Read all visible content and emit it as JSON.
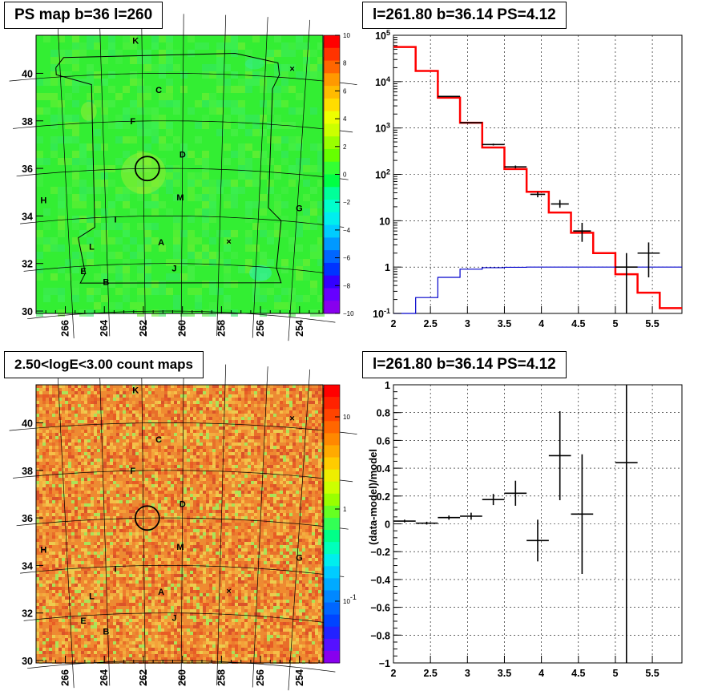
{
  "panels": {
    "ps_map": {
      "title": "PS map b=36 l=260"
    },
    "spectrum": {
      "title": "l=261.80 b=36.14 PS=4.12"
    },
    "count_map": {
      "title": "2.50<logE<3.00 count maps"
    },
    "residual": {
      "title": "l=261.80 b=36.14 PS=4.12",
      "ylabel": "(data-model)/model"
    }
  },
  "chart_data": [
    {
      "type": "heatmap",
      "title": "PS map b=36 l=260",
      "x_ticks": [
        "266",
        "264",
        "262",
        "260",
        "258",
        "256",
        "254"
      ],
      "y_ticks": [
        "30",
        "32",
        "34",
        "36",
        "38",
        "40"
      ],
      "xlim": [
        267.5,
        252.8
      ],
      "ylim": [
        29.9,
        41.6
      ],
      "colorbar_ticks": [
        "10",
        "8",
        "6",
        "4",
        "2",
        "0",
        "−2",
        "−4",
        "−6",
        "−8",
        "−10"
      ],
      "colorbar_range": [
        -10,
        10
      ],
      "labels": [
        {
          "text": "K",
          "l": 262.3,
          "b": 41.4
        },
        {
          "text": "C",
          "l": 261.2,
          "b": 39.3
        },
        {
          "text": "F",
          "l": 262.5,
          "b": 38.0
        },
        {
          "text": "D",
          "l": 260.0,
          "b": 36.6
        },
        {
          "text": "H",
          "l": 267.2,
          "b": 34.9
        },
        {
          "text": "M",
          "l": 260.1,
          "b": 34.8
        },
        {
          "text": "G",
          "l": 253.9,
          "b": 34.6
        },
        {
          "text": "I",
          "l": 263.5,
          "b": 33.9
        },
        {
          "text": "L",
          "l": 264.8,
          "b": 32.8
        },
        {
          "text": "A",
          "l": 261.1,
          "b": 32.9
        },
        {
          "text": "E",
          "l": 265.3,
          "b": 31.8
        },
        {
          "text": "J",
          "l": 260.4,
          "b": 31.8
        },
        {
          "text": "B",
          "l": 264.1,
          "b": 31.3
        },
        {
          "text": "×",
          "l": 257.5,
          "b": 33.0
        },
        {
          "text": "×",
          "l": 254.7,
          "b": 40.4
        }
      ],
      "circle": {
        "l": 261.8,
        "b": 36.0
      }
    },
    {
      "type": "line",
      "title": "l=261.80 b=36.14 PS=4.12",
      "x_ticks": [
        "2",
        "2.5",
        "3",
        "3.5",
        "4",
        "4.5",
        "5",
        "5.5"
      ],
      "y_ticks": [
        "10^-1",
        "1",
        "10",
        "10^2",
        "10^3",
        "10^4",
        "10^5"
      ],
      "xlim": [
        2,
        5.9
      ],
      "ylim": [
        0.1,
        100000
      ],
      "yscale": "log",
      "grid": true,
      "bin_edges": [
        2.0,
        2.3,
        2.6,
        2.9,
        3.2,
        3.5,
        3.8,
        4.1,
        4.4,
        4.7,
        5.0,
        5.3,
        5.6,
        5.9
      ],
      "series": [
        {
          "color": "#ff0000",
          "values": [
            56000,
            17000,
            4500,
            1300,
            380,
            130,
            42,
            15,
            5.5,
            2,
            0.7,
            0.28,
            0.13
          ]
        },
        {
          "color": "#0000cc",
          "values": [
            0.08,
            0.22,
            0.6,
            0.9,
            0.97,
            0.99,
            1,
            1,
            1,
            1,
            1,
            1,
            1
          ]
        }
      ],
      "data_points": [
        {
          "x": 2.75,
          "y": 4800,
          "dx": 0.15,
          "ylo": 4700,
          "yhi": 4900
        },
        {
          "x": 3.05,
          "y": 1300,
          "dx": 0.15,
          "ylo": 1270,
          "yhi": 1330
        },
        {
          "x": 3.35,
          "y": 440,
          "dx": 0.15,
          "ylo": 420,
          "yhi": 460
        },
        {
          "x": 3.65,
          "y": 145,
          "dx": 0.15,
          "ylo": 135,
          "yhi": 155
        },
        {
          "x": 3.95,
          "y": 37,
          "dx": 0.1,
          "ylo": 32,
          "yhi": 42
        },
        {
          "x": 4.25,
          "y": 23,
          "dx": 0.12,
          "ylo": 19,
          "yhi": 28
        },
        {
          "x": 4.55,
          "y": 6,
          "dx": 0.12,
          "ylo": 3.5,
          "yhi": 9
        },
        {
          "x": 5.15,
          "y": 1,
          "dx": 0.15,
          "ylo": 0.09,
          "yhi": 2
        },
        {
          "x": 5.45,
          "y": 2,
          "dx": 0.15,
          "ylo": 0.6,
          "yhi": 3.4
        }
      ]
    },
    {
      "type": "heatmap",
      "title": "2.50<logE<3.00 count maps",
      "x_ticks": [
        "266",
        "264",
        "262",
        "260",
        "258",
        "256",
        "254"
      ],
      "y_ticks": [
        "30",
        "32",
        "34",
        "36",
        "38",
        "40"
      ],
      "colorbar_ticks": [
        "10",
        "1",
        "10^-1"
      ],
      "colorbar_scale": "log"
    },
    {
      "type": "scatter",
      "title": "l=261.80 b=36.14 PS=4.12",
      "ylabel": "(data-model)/model",
      "x_ticks": [
        "2",
        "2.5",
        "3",
        "3.5",
        "4",
        "4.5",
        "5",
        "5.5"
      ],
      "y_ticks": [
        "−1",
        "−0.8",
        "−0.6",
        "−0.4",
        "−0.2",
        "0",
        "0.2",
        "0.4",
        "0.6",
        "0.8",
        "1"
      ],
      "xlim": [
        2,
        5.9
      ],
      "ylim": [
        -1,
        1
      ],
      "grid": true,
      "points": [
        {
          "x": 2.15,
          "y": 0.02,
          "dx": 0.15,
          "err": 0.01
        },
        {
          "x": 2.45,
          "y": 0.005,
          "dx": 0.15,
          "err": 0.01
        },
        {
          "x": 2.75,
          "y": 0.045,
          "dx": 0.15,
          "err": 0.015
        },
        {
          "x": 3.05,
          "y": 0.055,
          "dx": 0.15,
          "err": 0.025
        },
        {
          "x": 3.35,
          "y": 0.175,
          "dx": 0.15,
          "err": 0.04
        },
        {
          "x": 3.65,
          "y": 0.22,
          "dx": 0.15,
          "err": 0.09
        },
        {
          "x": 3.95,
          "y": -0.12,
          "dx": 0.15,
          "err": 0.15
        },
        {
          "x": 4.25,
          "y": 0.49,
          "dx": 0.15,
          "err": 0.32
        },
        {
          "x": 4.55,
          "y": 0.07,
          "dx": 0.15,
          "err": 0.43
        },
        {
          "x": 5.15,
          "y": 0.44,
          "dx": 0.15,
          "err": 1.5
        }
      ]
    }
  ]
}
